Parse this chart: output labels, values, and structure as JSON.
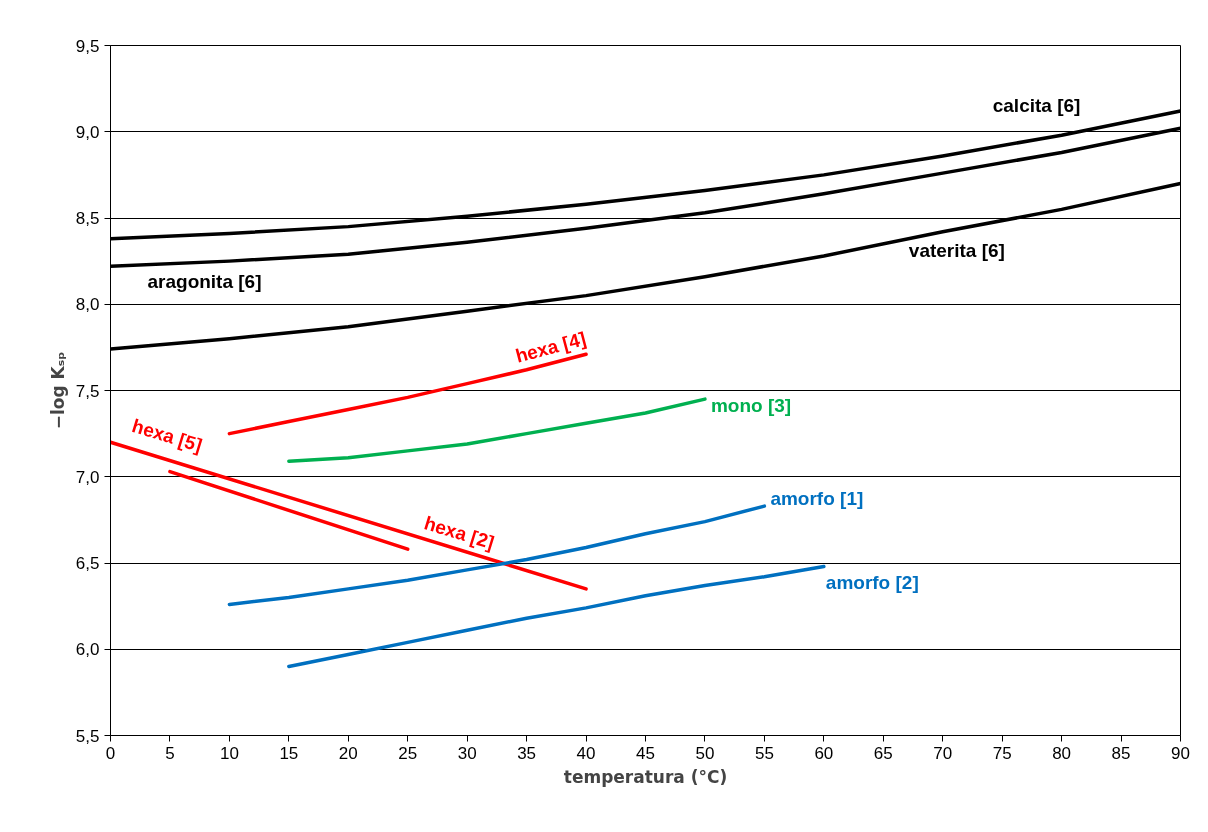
{
  "chart_data": {
    "type": "line",
    "xlabel": "temperatura (°C)",
    "ylabel": "−log Kₛₚ",
    "xlim": [
      0,
      90
    ],
    "ylim": [
      5.5,
      9.5
    ],
    "xticks": [
      0,
      5,
      10,
      15,
      20,
      25,
      30,
      35,
      40,
      45,
      50,
      55,
      60,
      65,
      70,
      75,
      80,
      85,
      90
    ],
    "yticks": [
      {
        "value": 5.5,
        "label": "5,5"
      },
      {
        "value": 6.0,
        "label": "6,0"
      },
      {
        "value": 6.5,
        "label": "6,5"
      },
      {
        "value": 7.0,
        "label": "7,0"
      },
      {
        "value": 7.5,
        "label": "7,5"
      },
      {
        "value": 8.0,
        "label": "8,0"
      },
      {
        "value": 8.5,
        "label": "8,5"
      },
      {
        "value": 9.0,
        "label": "9,0"
      },
      {
        "value": 9.5,
        "label": "9,5"
      }
    ],
    "grid": "y",
    "marker": "none",
    "line_style": "solid",
    "series": [
      {
        "name": "calcita [6]",
        "color": "#000000",
        "x": [
          0,
          10,
          20,
          30,
          40,
          50,
          60,
          70,
          80,
          90
        ],
        "values": [
          8.38,
          8.41,
          8.45,
          8.51,
          8.58,
          8.66,
          8.75,
          8.86,
          8.98,
          9.12
        ]
      },
      {
        "name": "aragonita [6]",
        "color": "#000000",
        "x": [
          0,
          10,
          20,
          30,
          40,
          50,
          60,
          70,
          80,
          90
        ],
        "values": [
          8.22,
          8.25,
          8.29,
          8.36,
          8.44,
          8.53,
          8.64,
          8.76,
          8.88,
          9.02
        ]
      },
      {
        "name": "vaterita [6]",
        "color": "#000000",
        "x": [
          0,
          10,
          20,
          30,
          40,
          50,
          60,
          70,
          80,
          90
        ],
        "values": [
          7.74,
          7.8,
          7.87,
          7.96,
          8.05,
          8.16,
          8.28,
          8.42,
          8.55,
          8.7
        ]
      },
      {
        "name": "hexa [4]",
        "color": "#ff0000",
        "x": [
          10,
          15,
          20,
          25,
          30,
          35,
          40
        ],
        "values": [
          7.25,
          7.32,
          7.39,
          7.46,
          7.54,
          7.62,
          7.71
        ]
      },
      {
        "name": "mono [3]",
        "color": "#00b050",
        "x": [
          15,
          20,
          25,
          30,
          35,
          40,
          45,
          50
        ],
        "values": [
          7.09,
          7.11,
          7.15,
          7.19,
          7.25,
          7.31,
          7.37,
          7.45
        ]
      },
      {
        "name": "hexa [2]",
        "color": "#ff0000",
        "x": [
          0,
          40
        ],
        "values": [
          7.2,
          6.35
        ]
      },
      {
        "name": "hexa [5]",
        "color": "#ff0000",
        "x": [
          5,
          25
        ],
        "values": [
          7.03,
          6.58
        ]
      },
      {
        "name": "amorfo [1]",
        "color": "#0070c0",
        "x": [
          10,
          15,
          20,
          25,
          30,
          35,
          40,
          45,
          50,
          55
        ],
        "values": [
          6.26,
          6.3,
          6.35,
          6.4,
          6.46,
          6.52,
          6.59,
          6.67,
          6.74,
          6.83
        ]
      },
      {
        "name": "amorfo [2]",
        "color": "#0070c0",
        "x": [
          15,
          20,
          25,
          30,
          35,
          40,
          45,
          50,
          55,
          60
        ],
        "values": [
          5.9,
          5.97,
          6.04,
          6.11,
          6.18,
          6.24,
          6.31,
          6.37,
          6.42,
          6.48
        ]
      }
    ]
  }
}
